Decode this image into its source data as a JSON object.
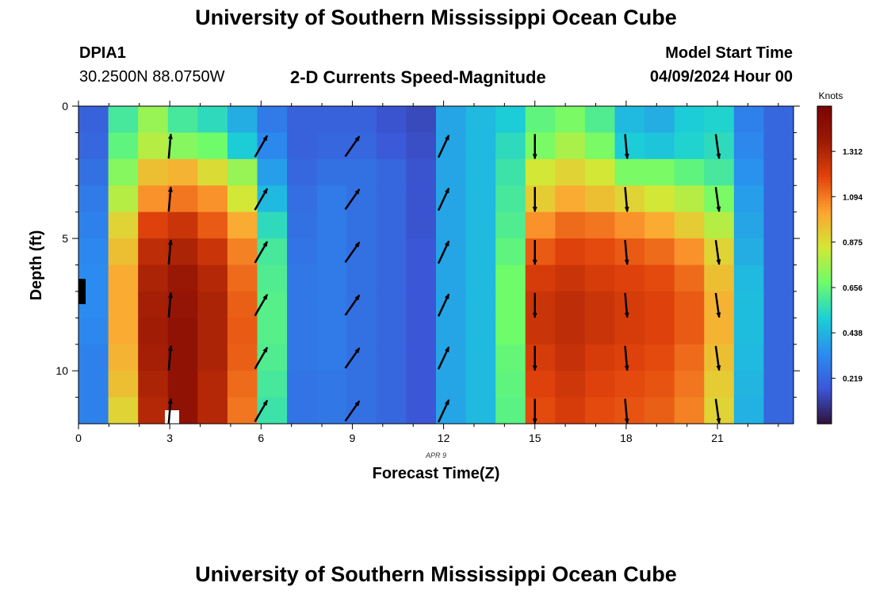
{
  "header": {
    "title": "University of Southern Mississippi Ocean Cube",
    "station_id": "DPIA1",
    "station_coords": "30.2500N  88.0750W",
    "subtitle": "2-D Currents Speed-Magnitude",
    "model_start_label": "Model Start Time",
    "model_start_value": "04/09/2024 Hour 00"
  },
  "footer": {
    "title": "University of Southern Mississippi Ocean Cube"
  },
  "chart_data": {
    "type": "heatmap",
    "title": "2-D Currents Speed-Magnitude",
    "xlabel": "Forecast Time(Z)",
    "ylabel": "Depth (ft)",
    "date_annotation": "APR 9",
    "x_ticks": [
      "0",
      "3",
      "6",
      "9",
      "12",
      "15",
      "18",
      "21"
    ],
    "y_ticks": [
      "0",
      "5",
      "10"
    ],
    "xlim": [
      0,
      23.5
    ],
    "ylim": [
      0,
      12
    ],
    "hours": [
      0,
      1,
      2,
      3,
      4,
      5,
      6,
      7,
      8,
      9,
      10,
      11,
      12,
      13,
      14,
      15,
      16,
      17,
      18,
      19,
      20,
      21,
      22,
      23
    ],
    "depths": [
      0,
      1,
      2,
      3,
      4,
      5,
      6,
      7,
      8,
      9,
      10,
      11
    ],
    "speed": [
      [
        0.2,
        0.6,
        0.75,
        0.6,
        0.55,
        0.42,
        0.28,
        0.2,
        0.2,
        0.2,
        0.16,
        0.14,
        0.4,
        0.45,
        0.5,
        0.65,
        0.7,
        0.62,
        0.45,
        0.42,
        0.5,
        0.52,
        0.3,
        0.22
      ],
      [
        0.22,
        0.65,
        0.8,
        0.72,
        0.68,
        0.5,
        0.32,
        0.2,
        0.22,
        0.22,
        0.18,
        0.15,
        0.4,
        0.45,
        0.55,
        0.7,
        0.78,
        0.7,
        0.5,
        0.48,
        0.52,
        0.55,
        0.32,
        0.22
      ],
      [
        0.25,
        0.72,
        0.95,
        0.98,
        0.88,
        0.75,
        0.38,
        0.22,
        0.25,
        0.25,
        0.22,
        0.16,
        0.4,
        0.45,
        0.58,
        0.85,
        0.9,
        0.85,
        0.7,
        0.7,
        0.65,
        0.6,
        0.35,
        0.22
      ],
      [
        0.28,
        0.8,
        1.05,
        1.1,
        1.05,
        0.85,
        0.45,
        0.24,
        0.28,
        0.25,
        0.22,
        0.16,
        0.4,
        0.45,
        0.6,
        0.92,
        1.0,
        0.95,
        0.9,
        0.85,
        0.8,
        0.7,
        0.38,
        0.22
      ],
      [
        0.3,
        0.9,
        1.2,
        1.25,
        1.15,
        1.0,
        0.55,
        0.25,
        0.28,
        0.25,
        0.22,
        0.16,
        0.4,
        0.45,
        0.62,
        1.05,
        1.12,
        1.1,
        1.05,
        1.0,
        0.92,
        0.8,
        0.4,
        0.22
      ],
      [
        0.32,
        0.95,
        1.28,
        1.32,
        1.25,
        1.08,
        0.6,
        0.26,
        0.28,
        0.25,
        0.22,
        0.17,
        0.4,
        0.45,
        0.65,
        1.15,
        1.2,
        1.18,
        1.15,
        1.12,
        1.05,
        0.9,
        0.42,
        0.22
      ],
      [
        0.33,
        1.0,
        1.32,
        1.38,
        1.3,
        1.12,
        0.62,
        0.27,
        0.28,
        0.25,
        0.22,
        0.17,
        0.4,
        0.45,
        0.68,
        1.22,
        1.25,
        1.22,
        1.2,
        1.18,
        1.12,
        0.95,
        0.45,
        0.22
      ],
      [
        0.33,
        1.0,
        1.34,
        1.4,
        1.32,
        1.14,
        0.63,
        0.27,
        0.28,
        0.25,
        0.22,
        0.17,
        0.4,
        0.45,
        0.68,
        1.25,
        1.28,
        1.25,
        1.22,
        1.2,
        1.15,
        0.98,
        0.46,
        0.22
      ],
      [
        0.32,
        1.0,
        1.35,
        1.42,
        1.32,
        1.15,
        0.63,
        0.27,
        0.28,
        0.25,
        0.22,
        0.17,
        0.4,
        0.45,
        0.68,
        1.25,
        1.28,
        1.25,
        1.22,
        1.2,
        1.15,
        0.98,
        0.46,
        0.22
      ],
      [
        0.3,
        0.98,
        1.34,
        1.42,
        1.32,
        1.14,
        0.62,
        0.27,
        0.28,
        0.25,
        0.22,
        0.17,
        0.4,
        0.45,
        0.66,
        1.22,
        1.26,
        1.22,
        1.2,
        1.18,
        1.12,
        0.95,
        0.45,
        0.22
      ],
      [
        0.3,
        0.95,
        1.32,
        1.42,
        1.3,
        1.12,
        0.6,
        0.26,
        0.27,
        0.25,
        0.22,
        0.17,
        0.4,
        0.45,
        0.65,
        1.2,
        1.24,
        1.2,
        1.18,
        1.16,
        1.1,
        0.92,
        0.44,
        0.22
      ],
      [
        0.3,
        0.9,
        1.3,
        1.42,
        1.3,
        1.1,
        0.58,
        0.26,
        0.27,
        0.25,
        0.22,
        0.17,
        0.4,
        0.45,
        0.64,
        1.18,
        1.22,
        1.18,
        1.16,
        1.14,
        1.08,
        0.9,
        0.43,
        0.22
      ]
    ],
    "arrow_hours": [
      3,
      6,
      9,
      12,
      15,
      18,
      21
    ],
    "arrow_depths": [
      2,
      4,
      6,
      8,
      10,
      12
    ],
    "arrow_directions_deg": [
      5,
      30,
      35,
      25,
      180,
      175,
      172
    ],
    "colorbar": {
      "label": "Knots",
      "min": 0,
      "max": 1.53,
      "ticks": [
        "1.312",
        "1.094",
        "0.875",
        "0.656",
        "0.438",
        "0.219"
      ],
      "colors": [
        "#30123b",
        "#3b57d8",
        "#2a8ef0",
        "#1bd0d5",
        "#6efc6a",
        "#d3e736",
        "#fea331",
        "#e2430b",
        "#9c1a05",
        "#7a0403"
      ]
    }
  }
}
